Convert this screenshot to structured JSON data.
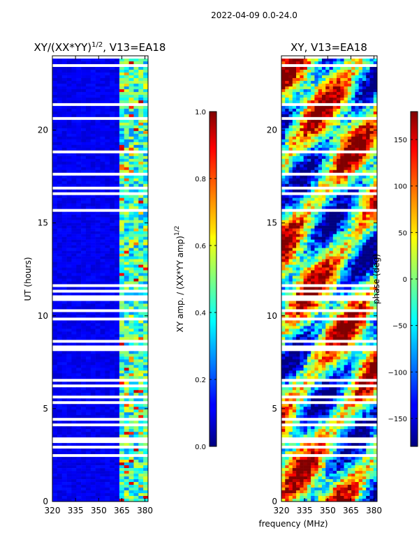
{
  "suptitle": "2022-04-09 0.0-24.0",
  "chart_data": [
    {
      "type": "heatmap",
      "title_main": "XY/(XX*YY)",
      "title_exp": "1/2",
      "title_suffix": ", V13=EA18",
      "ylabel": "UT (hours)",
      "xlim": [
        320,
        382
      ],
      "ylim": [
        0,
        24
      ],
      "xticks": [
        320,
        335,
        350,
        365,
        380
      ],
      "yticks": [
        0,
        5,
        10,
        15,
        20
      ],
      "colorbar": {
        "label_main": "XY amp. / (XX*YY amp)",
        "label_exp": "1/2",
        "range": [
          0.0,
          1.0
        ],
        "ticks": [
          "0.0",
          "0.2",
          "0.4",
          "0.6",
          "0.8",
          "1.0"
        ],
        "tick_values": [
          0.0,
          0.2,
          0.4,
          0.6,
          0.8,
          1.0
        ]
      }
    },
    {
      "type": "heatmap",
      "title": "XY, V13=EA18",
      "xlabel": "frequency (MHz)",
      "xlim": [
        320,
        382
      ],
      "ylim": [
        0,
        24
      ],
      "xticks": [
        320,
        335,
        350,
        365,
        380
      ],
      "yticks": [
        0,
        5,
        10,
        15,
        20
      ],
      "colorbar": {
        "label": "phase (deg)",
        "range": [
          -180,
          180
        ],
        "ticks": [
          "−150",
          "−100",
          "−50",
          "0",
          "50",
          "100",
          "150"
        ],
        "tick_values": [
          -150,
          -100,
          -50,
          0,
          50,
          100,
          150
        ]
      }
    }
  ]
}
